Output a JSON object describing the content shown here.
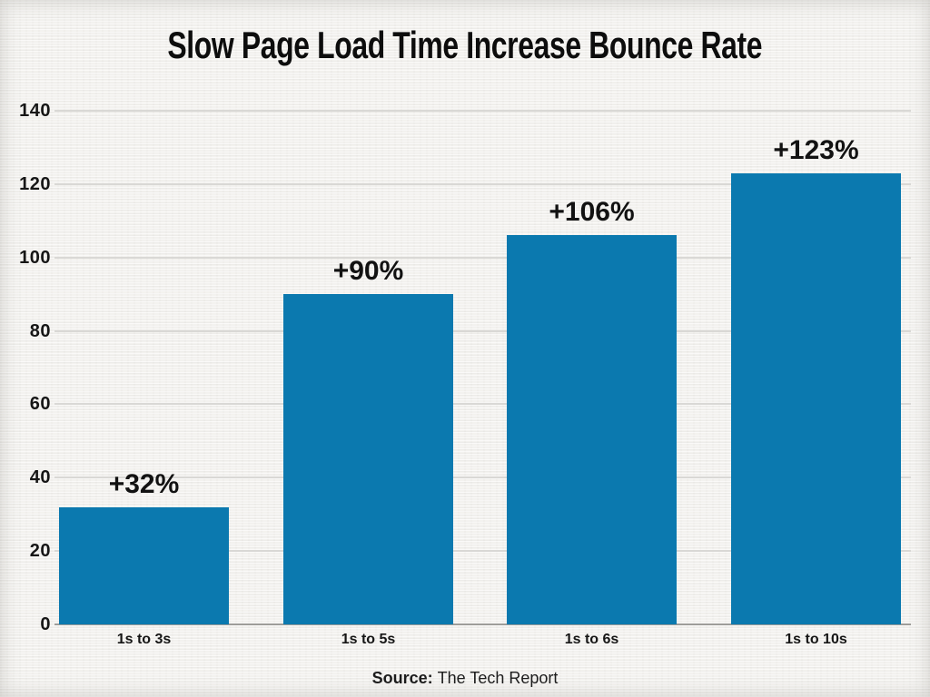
{
  "source": {
    "label": "Source:",
    "text": "The Tech Report"
  },
  "chart_data": {
    "type": "bar",
    "title": "Slow Page Load Time Increase Bounce Rate",
    "categories": [
      "1s to 3s",
      "1s to 5s",
      "1s to 6s",
      "1s to 10s"
    ],
    "values": [
      32,
      90,
      106,
      123
    ],
    "bar_labels": [
      "+32%",
      "+90%",
      "+106%",
      "+123%"
    ],
    "xlabel": "",
    "ylabel": "",
    "ylim": [
      0,
      140
    ],
    "yticks": [
      0,
      20,
      40,
      60,
      80,
      100,
      120,
      140
    ],
    "grid": "horizontal-only",
    "legend": "none",
    "colors": {
      "bar": "#0b79af",
      "gridline": "#d9d8d5",
      "baseline": "#9e9d99",
      "title_text": "#0d0d0d",
      "tick_text": "#161616",
      "background": "#f3f2ef"
    }
  }
}
